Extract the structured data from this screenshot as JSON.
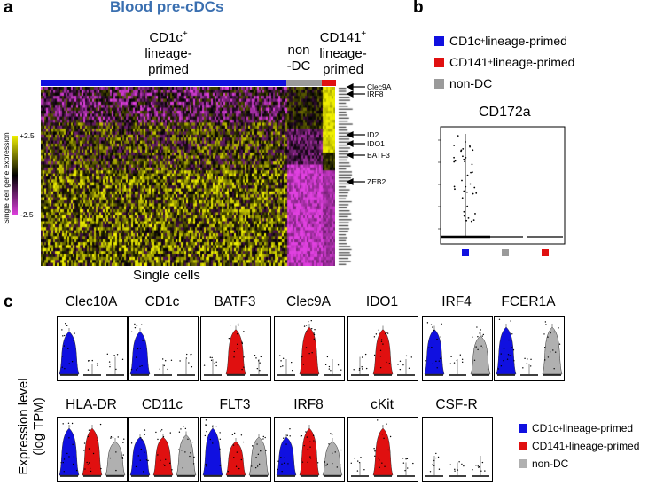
{
  "panel_a": {
    "letter": "a",
    "title": "Blood pre-cDCs",
    "groups": [
      {
        "line1": "CD1c",
        "sup": "+",
        "line2": "lineage-",
        "line3": "primed",
        "color": "#1010e0"
      },
      {
        "line1": "non",
        "sup": "",
        "line2": "-DC",
        "line3": "",
        "color": "#9a9a9a"
      },
      {
        "line1": "CD141",
        "sup": "+",
        "line2": "lineage-",
        "line3": "primed",
        "color": "#e01010"
      }
    ],
    "colorbar": {
      "label": "Single cell gene expression",
      "max": "+2.5",
      "min": "-2.5",
      "low_color": "#e040e0",
      "mid_color": "#000000",
      "high_color": "#f0f000"
    },
    "xlabel": "Single cells",
    "annotated_genes": [
      "Clec9A",
      "IRF8",
      "ID2",
      "IDO1",
      "BATF3",
      "ZEB2"
    ]
  },
  "panel_b": {
    "letter": "b",
    "legend": [
      {
        "label": "CD1c",
        "sup": "+",
        "rest": " lineage-primed",
        "color": "#1010e0"
      },
      {
        "label": "CD141",
        "sup": "+",
        "rest": " lineage-primed",
        "color": "#e01010"
      },
      {
        "label": "non-DC",
        "sup": "",
        "rest": "",
        "color": "#9a9a9a"
      }
    ],
    "chart_title": "CD172a"
  },
  "panel_c": {
    "letter": "c",
    "ylabel_line1": "Expression level",
    "ylabel_line2": "(log TPM)",
    "row1": [
      "Clec10A",
      "CD1c",
      "BATF3",
      "Clec9A",
      "IDO1",
      "IRF4",
      "FCER1A"
    ],
    "row2": [
      "HLA-DR",
      "CD11c",
      "FLT3",
      "IRF8",
      "cKit",
      "CSF-R"
    ],
    "legend": [
      {
        "label": "CD1c",
        "sup": "+",
        "rest": " lineage-primed",
        "color": "#1010e0"
      },
      {
        "label": "CD141",
        "sup": "+",
        "rest": " lineage-primed",
        "color": "#e01010"
      },
      {
        "label": "non-DC",
        "sup": "",
        "rest": "",
        "color": "#b0b0b0"
      }
    ]
  },
  "chart_data": [
    {
      "type": "heatmap",
      "title": "Blood pre-cDCs",
      "xlabel": "Single cells",
      "colorbar_range": [
        -2.5,
        2.5
      ],
      "groups": [
        "CD1c+ lineage-primed",
        "non-DC",
        "CD141+ lineage-primed"
      ],
      "annotated_genes": [
        "Clec9A",
        "IRF8",
        "ID2",
        "IDO1",
        "BATF3",
        "ZEB2"
      ]
    },
    {
      "type": "scatter",
      "title": "CD172a",
      "groups": [
        "CD1c+ lineage-primed",
        "non-DC",
        "CD141+ lineage-primed"
      ]
    },
    {
      "type": "violin",
      "ylabel": "Expression level (log TPM)",
      "genes": [
        "Clec10A",
        "CD1c",
        "BATF3",
        "Clec9A",
        "IDO1",
        "IRF4",
        "FCER1A",
        "HLA-DR",
        "CD11c",
        "FLT3",
        "IRF8",
        "cKit",
        "CSF-R"
      ],
      "groups": [
        "CD1c+ lineage-primed",
        "CD141+ lineage-primed",
        "non-DC"
      ],
      "shape_levels": {
        "Clec10A": [
          0.8,
          0.0,
          0.15
        ],
        "CD1c": [
          0.8,
          0.0,
          0.1
        ],
        "BATF3": [
          0.1,
          0.85,
          0.1
        ],
        "Clec9A": [
          0.1,
          0.9,
          0.1
        ],
        "IDO1": [
          0.15,
          0.85,
          0.1
        ],
        "IRF4": [
          0.85,
          0.1,
          0.7
        ],
        "FCER1A": [
          0.9,
          0.0,
          0.9
        ],
        "HLA-DR": [
          0.9,
          0.9,
          0.6
        ],
        "CD11c": [
          0.7,
          0.7,
          0.75
        ],
        "FLT3": [
          0.9,
          0.6,
          0.7
        ],
        "IRF8": [
          0.7,
          0.9,
          0.6
        ],
        "cKit": [
          0.05,
          0.9,
          0.05
        ],
        "CSF-R": [
          0.2,
          0.05,
          0.2
        ]
      }
    }
  ]
}
